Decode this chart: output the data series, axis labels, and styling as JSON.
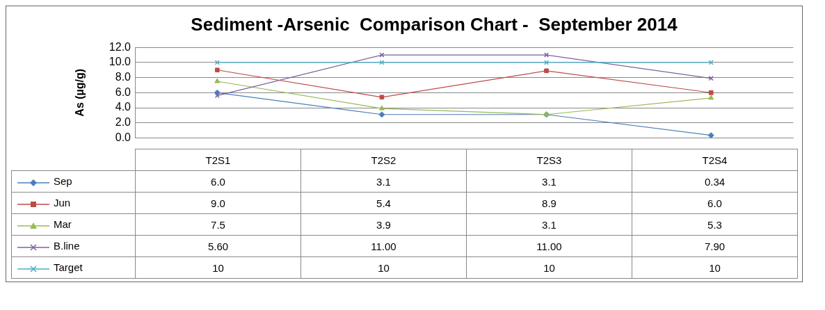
{
  "chart_data": {
    "type": "line",
    "title": "Sediment -Arsenic  Comparison Chart -  September 2014",
    "ylabel": "As (µg/g)",
    "categories": [
      "T2S1",
      "T2S2",
      "T2S3",
      "T2S4"
    ],
    "ylim": [
      0,
      12
    ],
    "yticks": [
      {
        "value": 0,
        "label": "0.0"
      },
      {
        "value": 2,
        "label": "2.0"
      },
      {
        "value": 4,
        "label": "4.0"
      },
      {
        "value": 6,
        "label": "6.0"
      },
      {
        "value": 8,
        "label": "8.0"
      },
      {
        "value": 10,
        "label": "10.0"
      },
      {
        "value": 12,
        "label": "12.0"
      }
    ],
    "grid": "y",
    "legend": "bottom",
    "series": [
      {
        "name": "Sep",
        "color": "#4a7ebb",
        "marker": "diamond",
        "values": [
          6.0,
          3.1,
          3.1,
          0.34
        ],
        "value_labels": [
          "6.0",
          "3.1",
          "3.1",
          "0.34"
        ]
      },
      {
        "name": "Jun",
        "color": "#be4b48",
        "marker": "square",
        "values": [
          9.0,
          5.4,
          8.9,
          6.0
        ],
        "value_labels": [
          "9.0",
          "5.4",
          "8.9",
          "6.0"
        ]
      },
      {
        "name": "Mar",
        "color": "#98b954",
        "marker": "triangle",
        "values": [
          7.5,
          3.9,
          3.1,
          5.3
        ],
        "value_labels": [
          "7.5",
          "3.9",
          "3.1",
          "5.3"
        ]
      },
      {
        "name": "B.line",
        "color": "#7d60a0",
        "marker": "cross",
        "values": [
          5.6,
          11.0,
          11.0,
          7.9
        ],
        "value_labels": [
          "5.60",
          "11.00",
          "11.00",
          "7.90"
        ]
      },
      {
        "name": "Target",
        "color": "#4bacc6",
        "marker": "cross",
        "values": [
          10,
          10,
          10,
          10
        ],
        "value_labels": [
          "10",
          "10",
          "10",
          "10"
        ]
      }
    ]
  }
}
